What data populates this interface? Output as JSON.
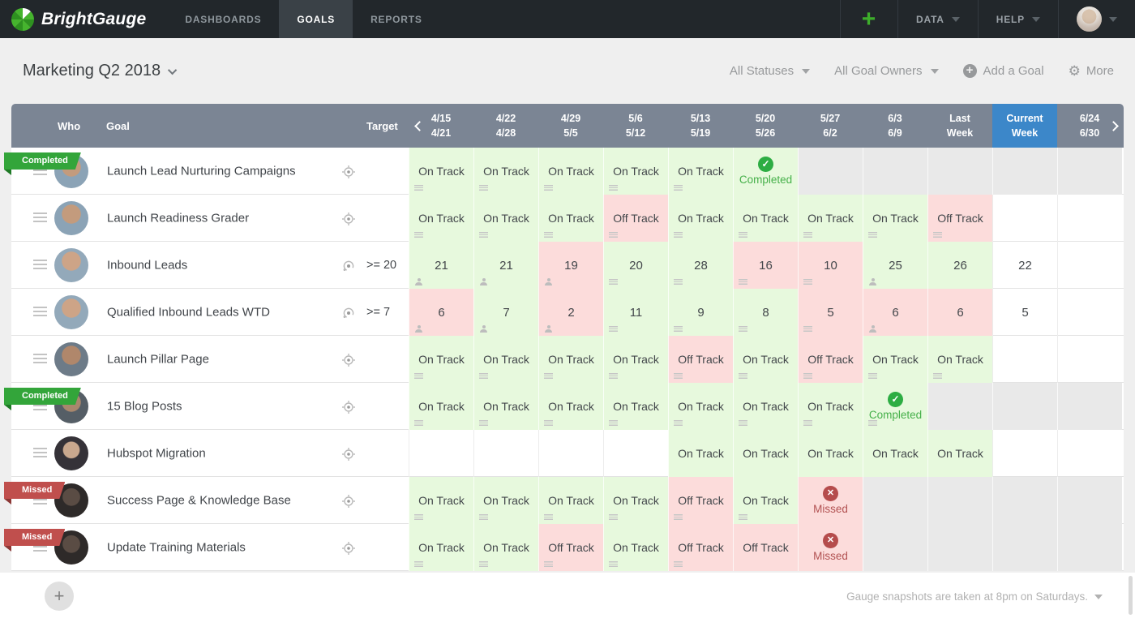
{
  "colors": {
    "brand_green": "#3dae2b",
    "table_header_bg": "#7b8594",
    "current_week_blue": "#3c87c9",
    "on_track_bg": "#e7f9dd",
    "off_track_bg": "#fcdcdb",
    "inactive_cell_bg": "#e9e9e9",
    "completed_green": "#2dad43",
    "missed_red": "#b54c4c"
  },
  "nav": {
    "brand": "BrightGauge",
    "tabs": [
      {
        "label": "DASHBOARDS",
        "active": false
      },
      {
        "label": "GOALS",
        "active": true
      },
      {
        "label": "REPORTS",
        "active": false
      }
    ],
    "add_label": "+",
    "data_menu": "DATA",
    "help_menu": "HELP"
  },
  "toolbar": {
    "title": "Marketing Q2 2018",
    "status_filter": "All Statuses",
    "owner_filter": "All Goal Owners",
    "add_goal_label": "Add a Goal",
    "more_label": "More"
  },
  "table": {
    "col_who": "Who",
    "col_goal": "Goal",
    "col_target": "Target",
    "weeks": [
      {
        "top": "4/15",
        "bottom": "4/21",
        "current": false
      },
      {
        "top": "4/22",
        "bottom": "4/28",
        "current": false
      },
      {
        "top": "4/29",
        "bottom": "5/5",
        "current": false
      },
      {
        "top": "5/6",
        "bottom": "5/12",
        "current": false
      },
      {
        "top": "5/13",
        "bottom": "5/19",
        "current": false
      },
      {
        "top": "5/20",
        "bottom": "5/26",
        "current": false
      },
      {
        "top": "5/27",
        "bottom": "6/2",
        "current": false
      },
      {
        "top": "6/3",
        "bottom": "6/9",
        "current": false
      },
      {
        "top": "Last",
        "bottom": "Week",
        "current": false
      },
      {
        "top": "Current",
        "bottom": "Week",
        "current": true
      },
      {
        "top": "6/24",
        "bottom": "6/30",
        "current": false
      }
    ],
    "rows": [
      {
        "ribbon": "Completed",
        "goal": "Launch Lead Nurturing Campaigns",
        "target": "",
        "target_icon": "scope",
        "cells": [
          {
            "text": "On Track",
            "state": "green",
            "icon": "notes"
          },
          {
            "text": "On Track",
            "state": "green",
            "icon": "notes"
          },
          {
            "text": "On Track",
            "state": "green",
            "icon": "notes"
          },
          {
            "text": "On Track",
            "state": "green",
            "icon": "notes"
          },
          {
            "text": "On Track",
            "state": "green",
            "icon": "notes"
          },
          {
            "text": "Completed",
            "state": "completed",
            "icon": ""
          },
          {
            "text": "",
            "state": "gray",
            "icon": ""
          },
          {
            "text": "",
            "state": "gray",
            "icon": ""
          },
          {
            "text": "",
            "state": "gray",
            "icon": ""
          },
          {
            "text": "",
            "state": "gray",
            "icon": ""
          },
          {
            "text": "",
            "state": "gray",
            "icon": ""
          }
        ]
      },
      {
        "ribbon": null,
        "goal": "Launch Readiness Grader",
        "target": "",
        "target_icon": "scope",
        "cells": [
          {
            "text": "On Track",
            "state": "green",
            "icon": "notes"
          },
          {
            "text": "On Track",
            "state": "green",
            "icon": "notes"
          },
          {
            "text": "On Track",
            "state": "green",
            "icon": "notes"
          },
          {
            "text": "Off Track",
            "state": "red",
            "icon": "notes"
          },
          {
            "text": "On Track",
            "state": "green",
            "icon": "notes"
          },
          {
            "text": "On Track",
            "state": "green",
            "icon": "notes"
          },
          {
            "text": "On Track",
            "state": "green",
            "icon": "notes"
          },
          {
            "text": "On Track",
            "state": "green",
            "icon": "notes"
          },
          {
            "text": "Off Track",
            "state": "red",
            "icon": "notes"
          },
          {
            "text": "",
            "state": "white",
            "icon": ""
          },
          {
            "text": "",
            "state": "white",
            "icon": ""
          }
        ]
      },
      {
        "ribbon": null,
        "goal": "Inbound Leads",
        "target": ">= 20",
        "target_icon": "orbit",
        "cells": [
          {
            "text": "21",
            "state": "green",
            "icon": "person"
          },
          {
            "text": "21",
            "state": "green",
            "icon": "person"
          },
          {
            "text": "19",
            "state": "red",
            "icon": "person"
          },
          {
            "text": "20",
            "state": "green",
            "icon": "notes"
          },
          {
            "text": "28",
            "state": "green",
            "icon": "notes"
          },
          {
            "text": "16",
            "state": "red",
            "icon": "notes"
          },
          {
            "text": "10",
            "state": "red",
            "icon": "notes"
          },
          {
            "text": "25",
            "state": "green",
            "icon": "person"
          },
          {
            "text": "26",
            "state": "green",
            "icon": ""
          },
          {
            "text": "22",
            "state": "white",
            "icon": ""
          },
          {
            "text": "",
            "state": "white",
            "icon": ""
          }
        ]
      },
      {
        "ribbon": null,
        "goal": "Qualified Inbound Leads WTD",
        "target": ">= 7",
        "target_icon": "orbit",
        "cells": [
          {
            "text": "6",
            "state": "red",
            "icon": "person"
          },
          {
            "text": "7",
            "state": "green",
            "icon": "person"
          },
          {
            "text": "2",
            "state": "red",
            "icon": "person"
          },
          {
            "text": "11",
            "state": "green",
            "icon": "notes"
          },
          {
            "text": "9",
            "state": "green",
            "icon": "notes"
          },
          {
            "text": "8",
            "state": "green",
            "icon": "notes"
          },
          {
            "text": "5",
            "state": "red",
            "icon": "notes"
          },
          {
            "text": "6",
            "state": "red",
            "icon": "person"
          },
          {
            "text": "6",
            "state": "red",
            "icon": ""
          },
          {
            "text": "5",
            "state": "white",
            "icon": ""
          },
          {
            "text": "",
            "state": "white",
            "icon": ""
          }
        ]
      },
      {
        "ribbon": null,
        "goal": "Launch Pillar Page",
        "target": "",
        "target_icon": "scope",
        "cells": [
          {
            "text": "On Track",
            "state": "green",
            "icon": "notes"
          },
          {
            "text": "On Track",
            "state": "green",
            "icon": "notes"
          },
          {
            "text": "On Track",
            "state": "green",
            "icon": "notes"
          },
          {
            "text": "On Track",
            "state": "green",
            "icon": "notes"
          },
          {
            "text": "Off Track",
            "state": "red",
            "icon": "notes"
          },
          {
            "text": "On Track",
            "state": "green",
            "icon": "notes"
          },
          {
            "text": "Off Track",
            "state": "red",
            "icon": "notes"
          },
          {
            "text": "On Track",
            "state": "green",
            "icon": "notes"
          },
          {
            "text": "On Track",
            "state": "green",
            "icon": "notes"
          },
          {
            "text": "",
            "state": "white",
            "icon": ""
          },
          {
            "text": "",
            "state": "white",
            "icon": ""
          }
        ]
      },
      {
        "ribbon": "Completed",
        "goal": "15 Blog Posts",
        "target": "",
        "target_icon": "scope",
        "cells": [
          {
            "text": "On Track",
            "state": "green",
            "icon": "notes"
          },
          {
            "text": "On Track",
            "state": "green",
            "icon": "notes"
          },
          {
            "text": "On Track",
            "state": "green",
            "icon": "notes"
          },
          {
            "text": "On Track",
            "state": "green",
            "icon": "notes"
          },
          {
            "text": "On Track",
            "state": "green",
            "icon": "notes"
          },
          {
            "text": "On Track",
            "state": "green",
            "icon": "notes"
          },
          {
            "text": "On Track",
            "state": "green",
            "icon": "notes"
          },
          {
            "text": "Completed",
            "state": "completed",
            "icon": "notes"
          },
          {
            "text": "",
            "state": "gray",
            "icon": ""
          },
          {
            "text": "",
            "state": "gray",
            "icon": ""
          },
          {
            "text": "",
            "state": "gray",
            "icon": ""
          }
        ]
      },
      {
        "ribbon": null,
        "goal": "Hubspot Migration",
        "target": "",
        "target_icon": "scope",
        "cells": [
          {
            "text": "",
            "state": "white",
            "icon": ""
          },
          {
            "text": "",
            "state": "white",
            "icon": ""
          },
          {
            "text": "",
            "state": "white",
            "icon": ""
          },
          {
            "text": "",
            "state": "white",
            "icon": ""
          },
          {
            "text": "On Track",
            "state": "green",
            "icon": ""
          },
          {
            "text": "On Track",
            "state": "green",
            "icon": ""
          },
          {
            "text": "On Track",
            "state": "green",
            "icon": ""
          },
          {
            "text": "On Track",
            "state": "green",
            "icon": ""
          },
          {
            "text": "On Track",
            "state": "green",
            "icon": ""
          },
          {
            "text": "",
            "state": "white",
            "icon": ""
          },
          {
            "text": "",
            "state": "white",
            "icon": ""
          }
        ]
      },
      {
        "ribbon": "Missed",
        "goal": "Success Page & Knowledge Base",
        "target": "",
        "target_icon": "scope",
        "cells": [
          {
            "text": "On Track",
            "state": "green",
            "icon": "notes"
          },
          {
            "text": "On Track",
            "state": "green",
            "icon": "notes"
          },
          {
            "text": "On Track",
            "state": "green",
            "icon": "notes"
          },
          {
            "text": "On Track",
            "state": "green",
            "icon": "notes"
          },
          {
            "text": "Off Track",
            "state": "red",
            "icon": "notes"
          },
          {
            "text": "On Track",
            "state": "green",
            "icon": "notes"
          },
          {
            "text": "Missed",
            "state": "missed",
            "icon": ""
          },
          {
            "text": "",
            "state": "gray",
            "icon": ""
          },
          {
            "text": "",
            "state": "gray",
            "icon": ""
          },
          {
            "text": "",
            "state": "gray",
            "icon": ""
          },
          {
            "text": "",
            "state": "gray",
            "icon": ""
          }
        ]
      },
      {
        "ribbon": "Missed",
        "goal": "Update Training Materials",
        "target": "",
        "target_icon": "scope",
        "cells": [
          {
            "text": "On Track",
            "state": "green",
            "icon": "notes"
          },
          {
            "text": "On Track",
            "state": "green",
            "icon": "notes"
          },
          {
            "text": "Off Track",
            "state": "red",
            "icon": "notes"
          },
          {
            "text": "On Track",
            "state": "green",
            "icon": "notes"
          },
          {
            "text": "Off Track",
            "state": "red",
            "icon": "notes"
          },
          {
            "text": "Off Track",
            "state": "red",
            "icon": ""
          },
          {
            "text": "Missed",
            "state": "missed",
            "icon": ""
          },
          {
            "text": "",
            "state": "gray",
            "icon": ""
          },
          {
            "text": "",
            "state": "gray",
            "icon": ""
          },
          {
            "text": "",
            "state": "gray",
            "icon": ""
          },
          {
            "text": "",
            "state": "gray",
            "icon": ""
          }
        ]
      }
    ]
  },
  "footer": {
    "add_label": "+",
    "snapshot_note": "Gauge snapshots are taken at 8pm on Saturdays."
  }
}
